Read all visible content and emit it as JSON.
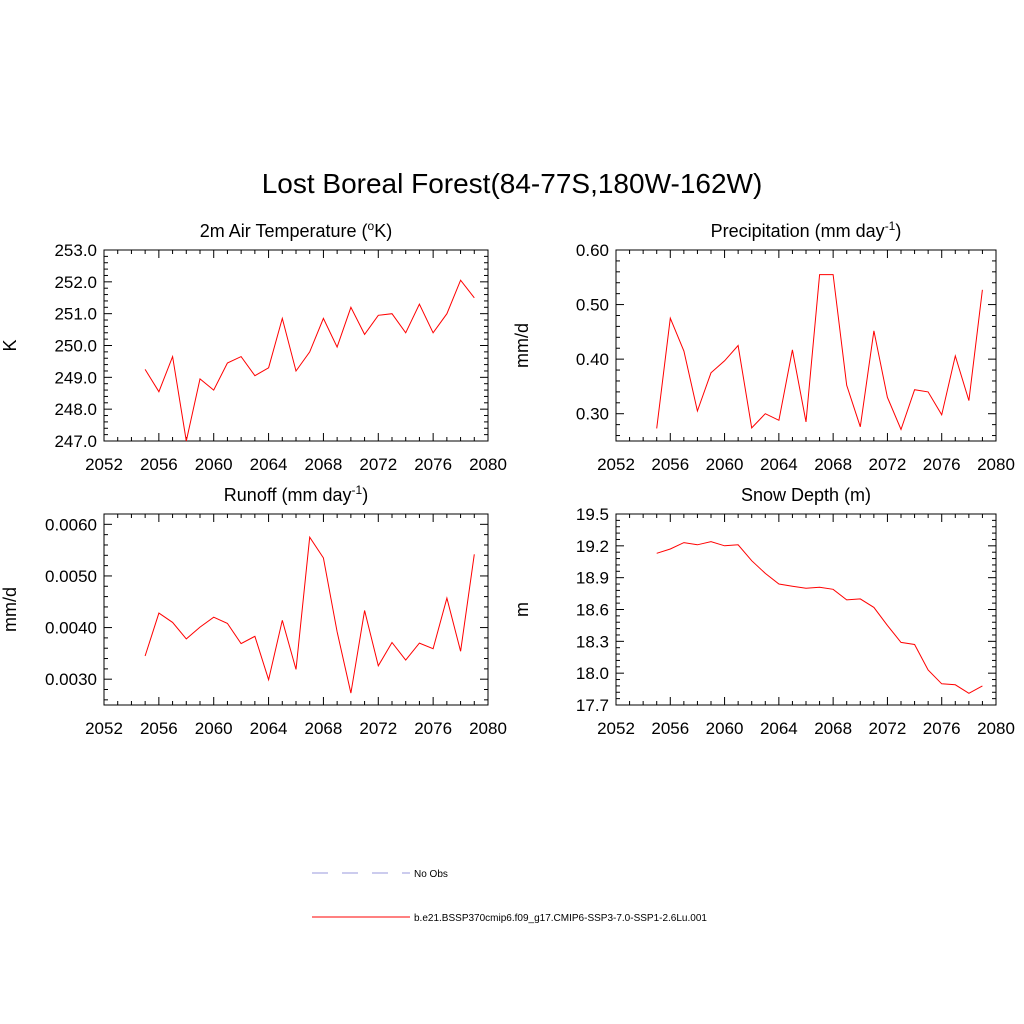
{
  "page": {
    "title": "Lost Boreal Forest(84-77S,180W-162W)"
  },
  "legend": {
    "entries": [
      {
        "label": "No Obs",
        "color": "#9999dd",
        "dash": true
      },
      {
        "label": "b.e21.BSSP370cmip6.f09_g17.CMIP6-SSP3-7.0-SSP1-2.6Lu.001",
        "color": "#ff0000",
        "dash": false
      }
    ]
  },
  "chart_data": [
    {
      "type": "line",
      "title": "2m Air Temperature (",
      "title_sup": "o",
      "title_suffix": "K)",
      "ylabel": "K",
      "xlim": [
        2052,
        2080
      ],
      "ylim": [
        247.0,
        253.0
      ],
      "xticks": [
        2052,
        2056,
        2060,
        2064,
        2068,
        2072,
        2076,
        2080
      ],
      "yticks": [
        247.0,
        248.0,
        249.0,
        250.0,
        251.0,
        252.0,
        253.0
      ],
      "ytick_labels": [
        "247.0",
        "248.0",
        "249.0",
        "250.0",
        "251.0",
        "252.0",
        "253.0"
      ],
      "series": [
        {
          "color": "#ff0000",
          "x": [
            2055,
            2056,
            2057,
            2058,
            2059,
            2060,
            2061,
            2062,
            2063,
            2064,
            2065,
            2066,
            2067,
            2068,
            2069,
            2070,
            2071,
            2072,
            2073,
            2074,
            2075,
            2076,
            2077,
            2078,
            2079
          ],
          "y": [
            249.25,
            248.55,
            249.65,
            247.0,
            248.95,
            248.6,
            249.45,
            249.65,
            249.05,
            249.3,
            250.85,
            249.2,
            249.8,
            250.85,
            249.95,
            251.2,
            250.35,
            250.95,
            251.0,
            250.4,
            251.3,
            250.4,
            251.0,
            252.05,
            251.5
          ]
        }
      ]
    },
    {
      "type": "line",
      "title": "Precipitation (mm day",
      "title_sup": "-1",
      "title_suffix": ")",
      "ylabel": "mm/d",
      "xlim": [
        2052,
        2080
      ],
      "ylim": [
        0.25,
        0.6
      ],
      "xticks": [
        2052,
        2056,
        2060,
        2064,
        2068,
        2072,
        2076,
        2080
      ],
      "yticks": [
        0.3,
        0.4,
        0.5,
        0.6
      ],
      "ytick_labels": [
        "0.30",
        "0.40",
        "0.50",
        "0.60"
      ],
      "series": [
        {
          "color": "#ff0000",
          "x": [
            2055,
            2056,
            2057,
            2058,
            2059,
            2060,
            2061,
            2062,
            2063,
            2064,
            2065,
            2066,
            2067,
            2068,
            2069,
            2070,
            2071,
            2072,
            2073,
            2074,
            2075,
            2076,
            2077,
            2078,
            2079
          ],
          "y": [
            0.273,
            0.475,
            0.415,
            0.305,
            0.375,
            0.397,
            0.425,
            0.274,
            0.3,
            0.288,
            0.417,
            0.285,
            0.555,
            0.555,
            0.352,
            0.276,
            0.452,
            0.33,
            0.271,
            0.344,
            0.34,
            0.298,
            0.406,
            0.324,
            0.527
          ]
        }
      ]
    },
    {
      "type": "line",
      "title": "Runoff (mm day",
      "title_sup": "-1",
      "title_suffix": ")",
      "ylabel": "mm/d",
      "xlim": [
        2052,
        2080
      ],
      "ylim": [
        0.0025,
        0.0062
      ],
      "xticks": [
        2052,
        2056,
        2060,
        2064,
        2068,
        2072,
        2076,
        2080
      ],
      "yticks": [
        0.003,
        0.004,
        0.005,
        0.006
      ],
      "ytick_labels": [
        "0.0030",
        "0.0040",
        "0.0050",
        "0.0060"
      ],
      "series": [
        {
          "color": "#ff0000",
          "x": [
            2055,
            2056,
            2057,
            2058,
            2059,
            2060,
            2061,
            2062,
            2063,
            2064,
            2065,
            2066,
            2067,
            2068,
            2069,
            2070,
            2071,
            2072,
            2073,
            2074,
            2075,
            2076,
            2077,
            2078,
            2079
          ],
          "y": [
            0.00345,
            0.00428,
            0.0041,
            0.00378,
            0.00401,
            0.0042,
            0.00408,
            0.00369,
            0.00383,
            0.00299,
            0.00414,
            0.00319,
            0.00575,
            0.00535,
            0.00392,
            0.00273,
            0.00433,
            0.00326,
            0.00371,
            0.00337,
            0.0037,
            0.00359,
            0.00457,
            0.00354,
            0.00542
          ]
        }
      ]
    },
    {
      "type": "line",
      "title": "Snow Depth (m)",
      "title_sup": "",
      "title_suffix": "",
      "ylabel": "m",
      "xlim": [
        2052,
        2080
      ],
      "ylim": [
        17.7,
        19.5
      ],
      "xticks": [
        2052,
        2056,
        2060,
        2064,
        2068,
        2072,
        2076,
        2080
      ],
      "yticks": [
        17.7,
        18.0,
        18.3,
        18.6,
        18.9,
        19.2,
        19.5
      ],
      "ytick_labels": [
        "17.7",
        "18.0",
        "18.3",
        "18.6",
        "18.9",
        "19.2",
        "19.5"
      ],
      "series": [
        {
          "color": "#ff0000",
          "x": [
            2055,
            2056,
            2057,
            2058,
            2059,
            2060,
            2061,
            2062,
            2063,
            2064,
            2065,
            2066,
            2067,
            2068,
            2069,
            2070,
            2071,
            2072,
            2073,
            2074,
            2075,
            2076,
            2077,
            2078,
            2079
          ],
          "y": [
            19.13,
            19.17,
            19.23,
            19.21,
            19.24,
            19.2,
            19.21,
            19.06,
            18.94,
            18.84,
            18.82,
            18.8,
            18.81,
            18.79,
            18.69,
            18.7,
            18.62,
            18.45,
            18.29,
            18.27,
            18.03,
            17.9,
            17.89,
            17.81,
            17.88
          ]
        }
      ]
    }
  ]
}
